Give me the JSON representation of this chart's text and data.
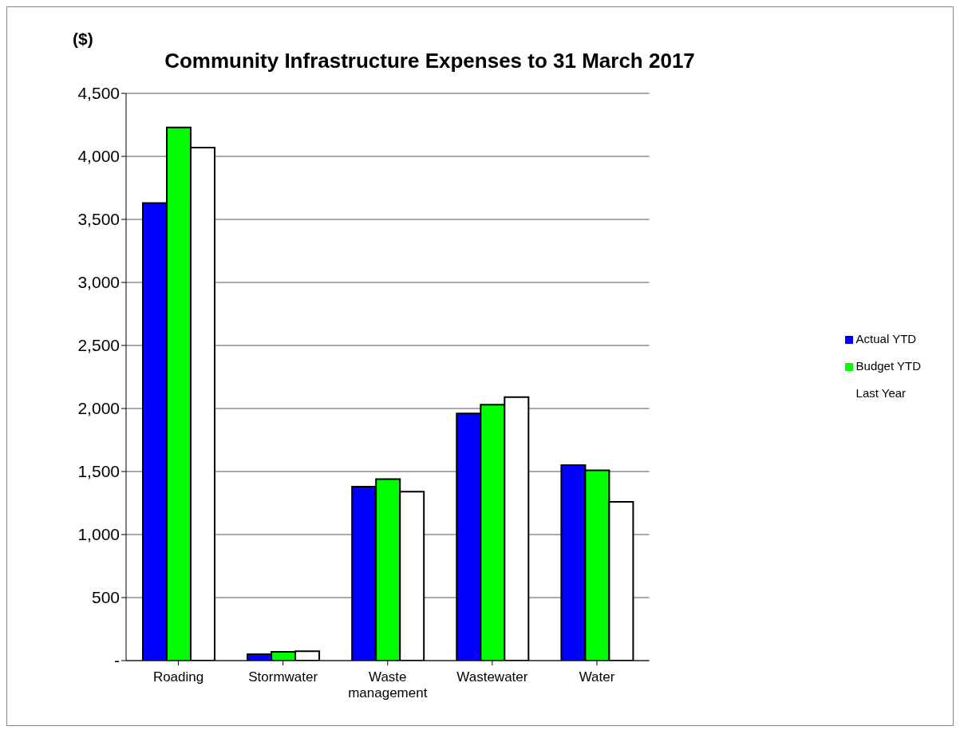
{
  "chart_data": {
    "type": "bar",
    "title": "Community Infrastructure Expenses to 31 March 2017",
    "ylabel": "($)",
    "categories": [
      "Roading",
      "Stormwater",
      "Waste management",
      "Wastewater",
      "Water"
    ],
    "series": [
      {
        "name": "Actual YTD",
        "color": "#0000ff",
        "values": [
          3630,
          50,
          1380,
          1960,
          1550
        ]
      },
      {
        "name": "Budget YTD",
        "color": "#00ff00",
        "values": [
          4230,
          70,
          1440,
          2030,
          1510
        ]
      },
      {
        "name": "Last Year",
        "color": "#ffffff",
        "values": [
          4070,
          75,
          1340,
          2090,
          1260
        ]
      }
    ],
    "ylim": [
      0,
      4500
    ],
    "yticks": [
      {
        "value": 0,
        "label": "-"
      },
      {
        "value": 500,
        "label": "500"
      },
      {
        "value": 1000,
        "label": "1,000"
      },
      {
        "value": 1500,
        "label": "1,500"
      },
      {
        "value": 2000,
        "label": "2,000"
      },
      {
        "value": 2500,
        "label": "2,500"
      },
      {
        "value": 3000,
        "label": "3,000"
      },
      {
        "value": 3500,
        "label": "3,500"
      },
      {
        "value": 4000,
        "label": "4,000"
      },
      {
        "value": 4500,
        "label": "4,500"
      }
    ],
    "grid": "y",
    "legend": "right"
  }
}
